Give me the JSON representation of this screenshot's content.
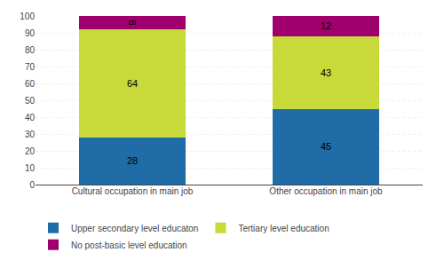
{
  "chart_data": {
    "type": "bar",
    "stacked": true,
    "categories": [
      "Cultural occupation in main job",
      "Other occupation in main job"
    ],
    "series": [
      {
        "name": "Upper secondary level educaton",
        "color": "#1F6CA6",
        "values": [
          28,
          45
        ]
      },
      {
        "name": "Tertiary level education",
        "color": "#C8D93A",
        "values": [
          64,
          43
        ]
      },
      {
        "name": "No post-basic level education",
        "color": "#A0006E",
        "values": [
          8,
          12
        ]
      }
    ],
    "ylim": [
      0,
      100
    ],
    "yticks": [
      0,
      10,
      20,
      30,
      40,
      50,
      60,
      70,
      80,
      90,
      100
    ],
    "grid": true,
    "data_labels": true,
    "legend": "bottom"
  }
}
